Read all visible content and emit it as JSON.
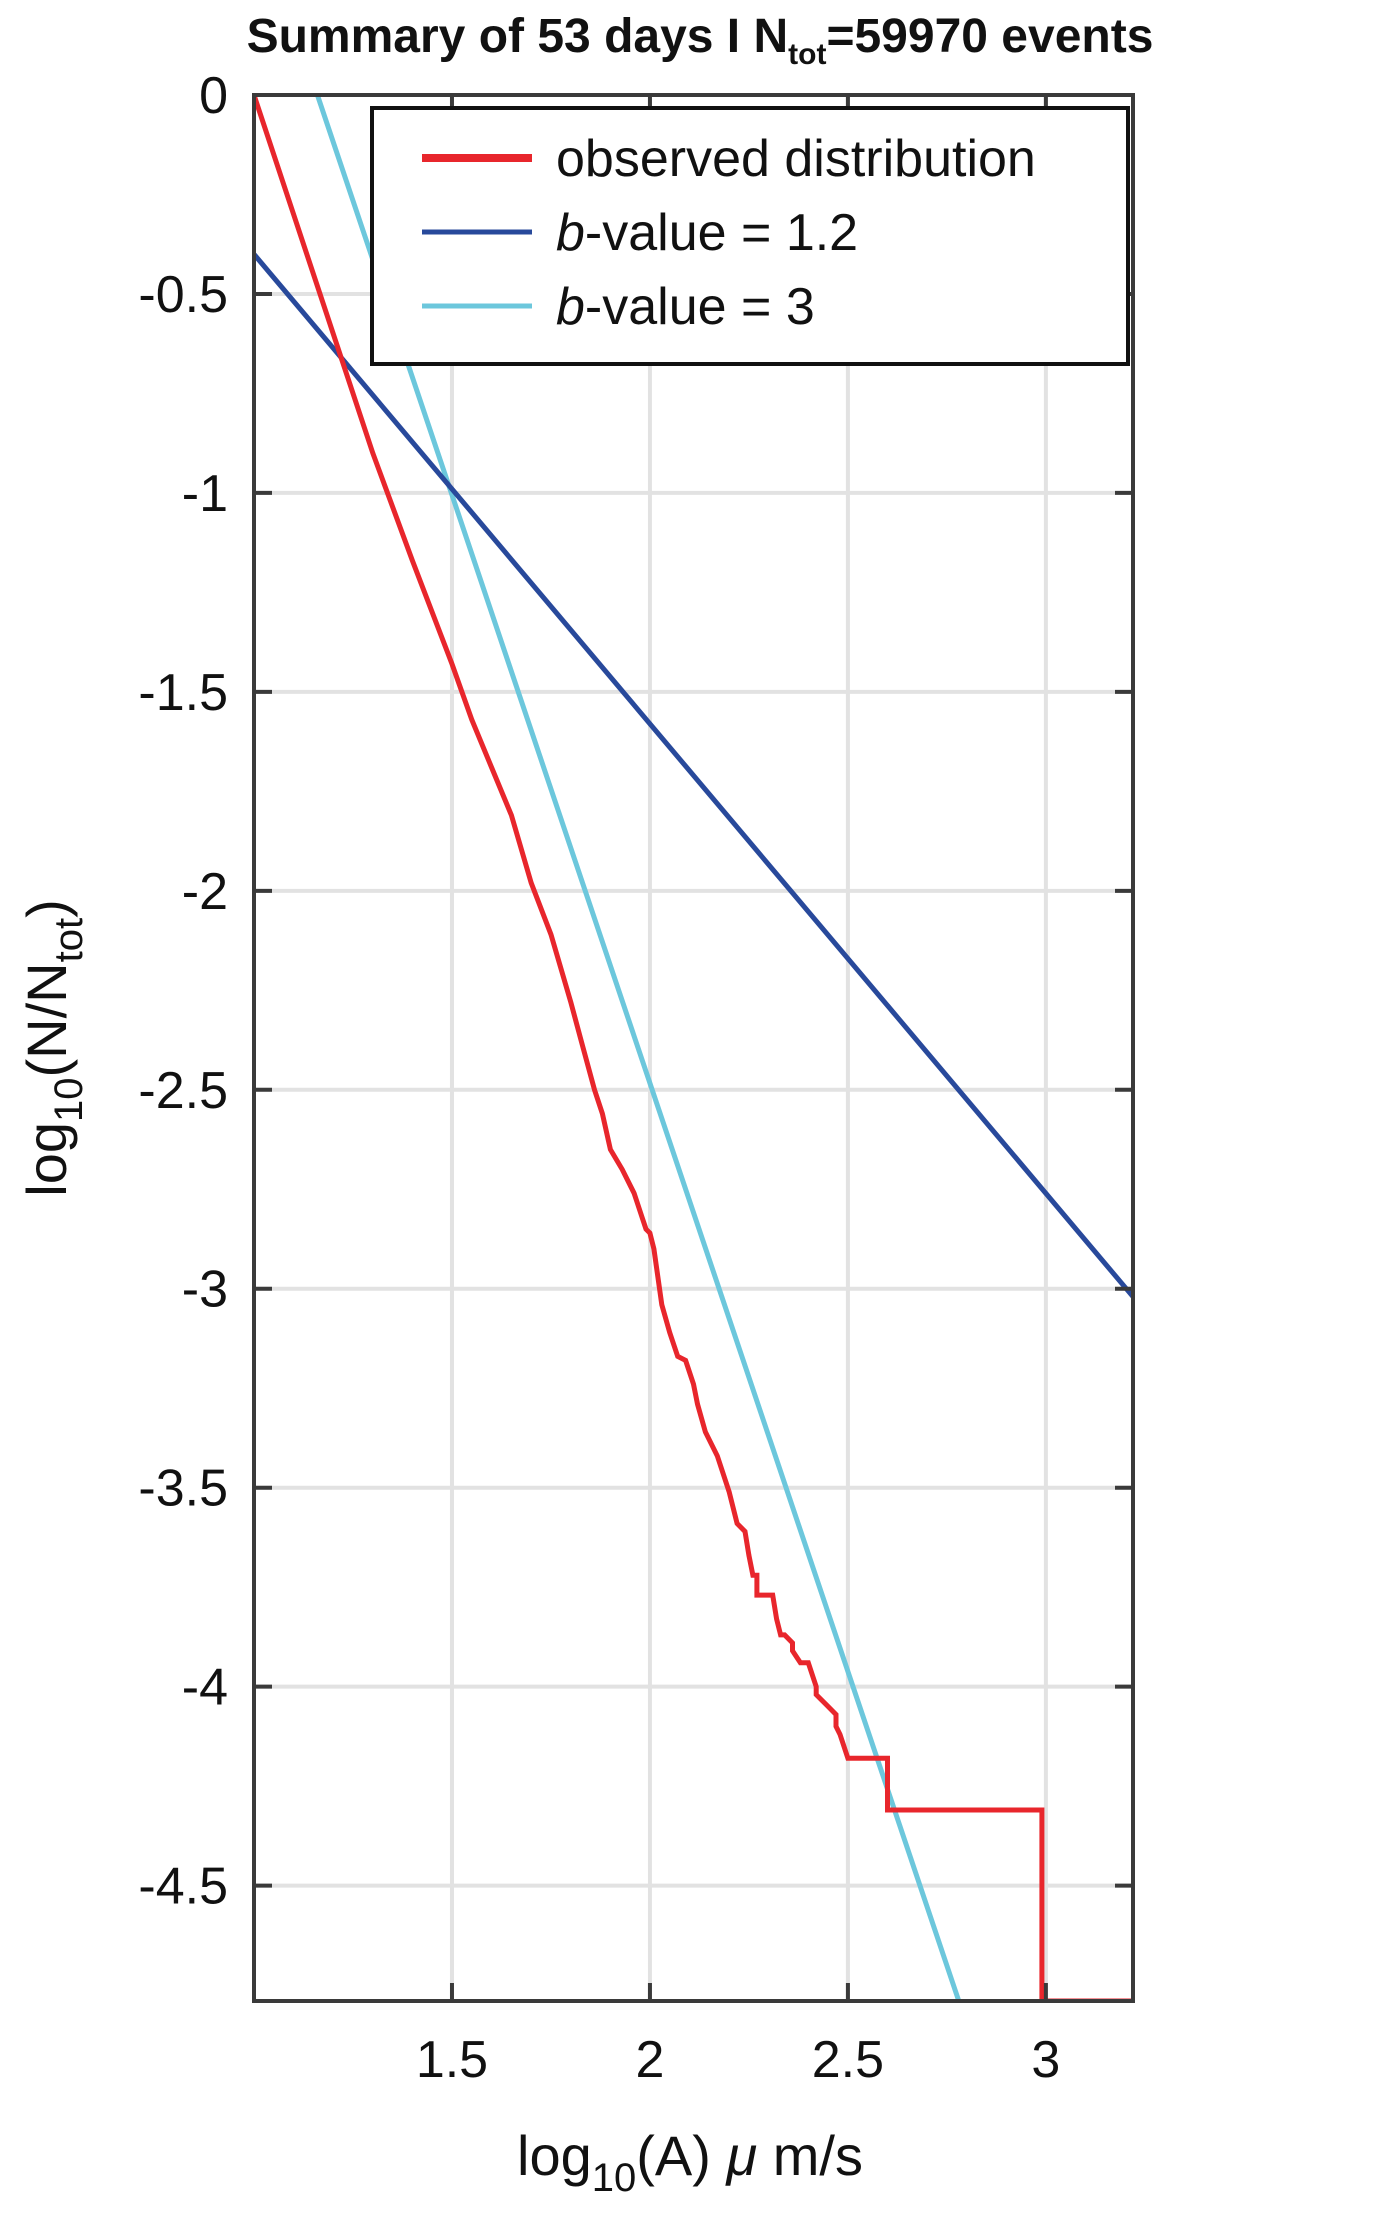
{
  "chart_data": {
    "type": "line",
    "title": {
      "prefix": "Summary of 53 days I N",
      "sub": "tot",
      "suffix": "=59970 events"
    },
    "xlabel": {
      "pre": "log",
      "sub": "10",
      "mid": "(A)  ",
      "mu": "μ",
      "post": " m/s"
    },
    "ylabel": {
      "pre": "log",
      "sub": "10",
      "mid": "(N/N",
      "sub2": "tot",
      "post": ")"
    },
    "xlim": [
      1.0,
      3.22
    ],
    "ylim": [
      -4.79,
      0.0
    ],
    "xticks": [
      1.5,
      2.0,
      2.5,
      3.0
    ],
    "xtick_labels": [
      "1.5",
      "2",
      "2.5",
      "3"
    ],
    "yticks": [
      0,
      -0.5,
      -1,
      -1.5,
      -2,
      -2.5,
      -3,
      -3.5,
      -4,
      -4.5
    ],
    "ytick_labels": [
      "0",
      "-0.5",
      "-1",
      "-1.5",
      "-2",
      "-2.5",
      "-3",
      "-3.5",
      "-4",
      "-4.5"
    ],
    "grid": true,
    "legend_position": "top-right",
    "series": [
      {
        "name": "observed distribution",
        "legend_prefix": "",
        "legend_italic": "",
        "legend_suffix": "observed distribution",
        "color": "#e8262c",
        "x": [
          1.0,
          1.1,
          1.2,
          1.3,
          1.4,
          1.5,
          1.55,
          1.6,
          1.65,
          1.7,
          1.75,
          1.8,
          1.83,
          1.86,
          1.88,
          1.9,
          1.93,
          1.96,
          1.98,
          1.99,
          2.0,
          2.01,
          2.03,
          2.05,
          2.07,
          2.09,
          2.11,
          2.12,
          2.14,
          2.17,
          2.2,
          2.22,
          2.24,
          2.25,
          2.26,
          2.27,
          2.27,
          2.28,
          2.31,
          2.32,
          2.33,
          2.34,
          2.36,
          2.36,
          2.38,
          2.4,
          2.42,
          2.42,
          2.45,
          2.47,
          2.47,
          2.48,
          2.5,
          2.5,
          2.6,
          2.6,
          2.99,
          2.99,
          3.22
        ],
        "y": [
          0.0,
          -0.3,
          -0.6,
          -0.9,
          -1.17,
          -1.43,
          -1.57,
          -1.69,
          -1.81,
          -1.98,
          -2.11,
          -2.28,
          -2.39,
          -2.5,
          -2.56,
          -2.65,
          -2.7,
          -2.76,
          -2.82,
          -2.85,
          -2.86,
          -2.9,
          -3.04,
          -3.11,
          -3.17,
          -3.18,
          -3.24,
          -3.29,
          -3.36,
          -3.42,
          -3.51,
          -3.59,
          -3.61,
          -3.67,
          -3.72,
          -3.72,
          -3.77,
          -3.77,
          -3.77,
          -3.83,
          -3.87,
          -3.87,
          -3.89,
          -3.91,
          -3.94,
          -3.94,
          -4.0,
          -4.02,
          -4.05,
          -4.07,
          -4.1,
          -4.12,
          -4.18,
          -4.18,
          -4.18,
          -4.31,
          -4.31,
          -4.79,
          -4.79
        ]
      },
      {
        "name": "b-value = 1.2",
        "legend_prefix": "",
        "legend_italic": "b",
        "legend_suffix": "-value = 1.2",
        "color": "#28499b",
        "x": [
          1.0,
          3.22
        ],
        "y": [
          -0.4,
          -3.02
        ]
      },
      {
        "name": "b-value = 3",
        "legend_prefix": "",
        "legend_italic": "b",
        "legend_suffix": "-value = 3",
        "color": "#6cc7dc",
        "x": [
          1.16,
          2.78
        ],
        "y": [
          0.0,
          -4.79
        ]
      }
    ]
  }
}
